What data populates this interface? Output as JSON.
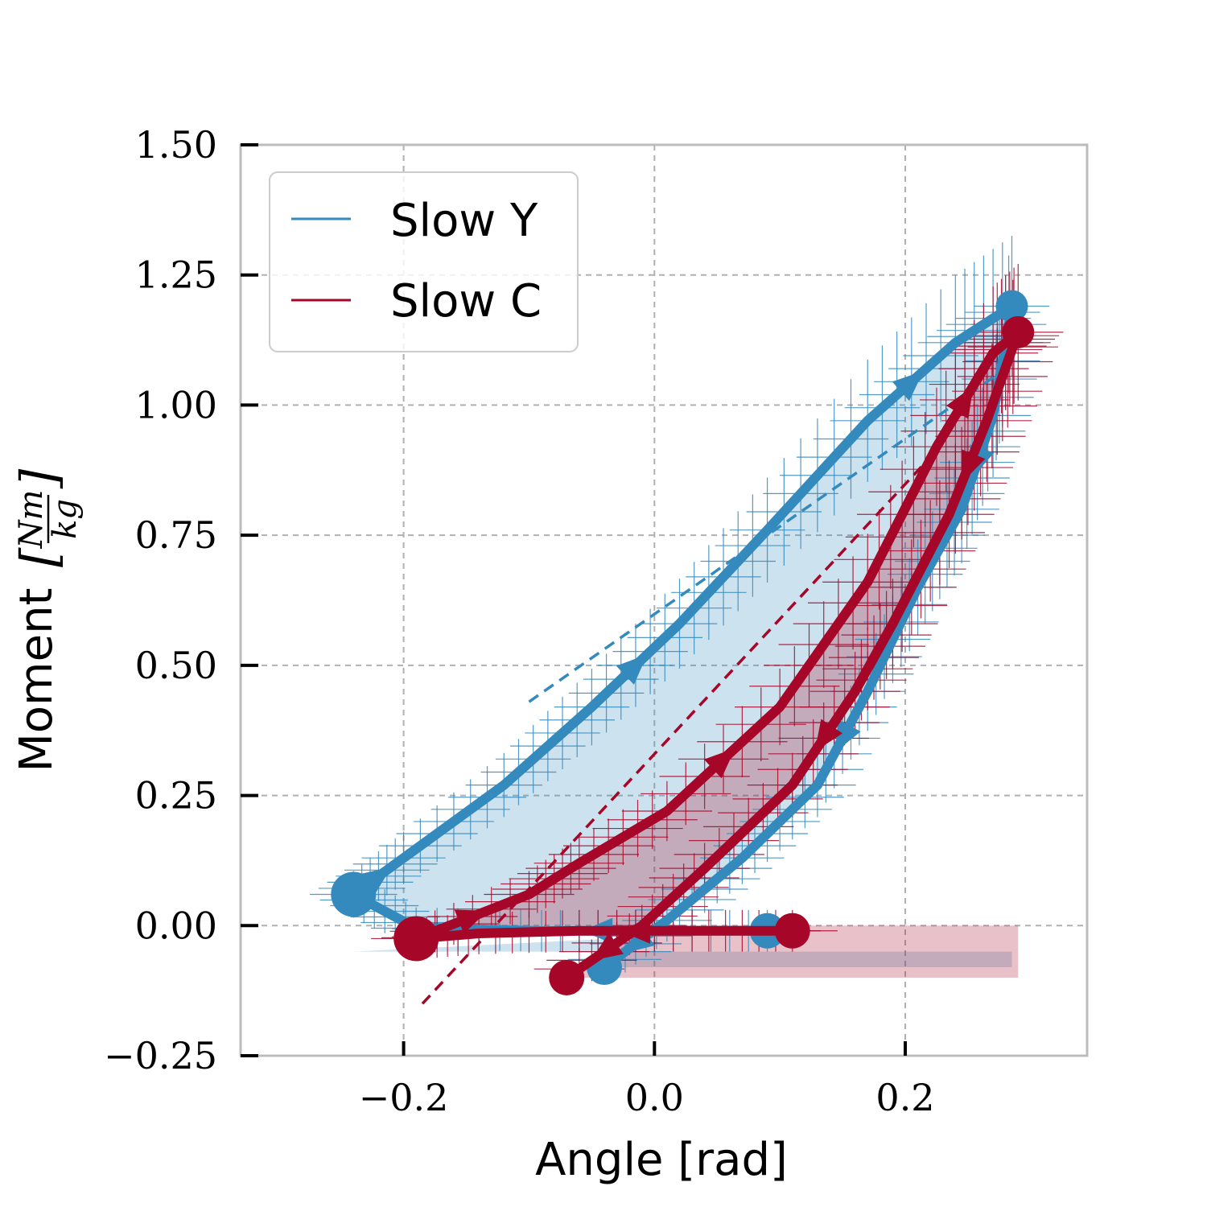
{
  "chart_data": {
    "type": "line",
    "xlabel": "Angle [rad]",
    "ylabel": "Moment",
    "ylabel_unit": {
      "numerator": "Nm",
      "denominator": "kg"
    },
    "xlim": [
      -0.33,
      0.345
    ],
    "ylim": [
      -0.25,
      1.5
    ],
    "xticks": [
      -0.2,
      0.0,
      0.2
    ],
    "xtick_labels": [
      "−0.2",
      "0.0",
      "0.2"
    ],
    "yticks": [
      -0.25,
      0.0,
      0.25,
      0.5,
      0.75,
      1.0,
      1.25,
      1.5
    ],
    "ytick_labels": [
      "−0.25",
      "0.00",
      "0.25",
      "0.50",
      "0.75",
      "1.00",
      "1.25",
      "1.50"
    ],
    "grid": true,
    "legend": {
      "position": "top-left"
    },
    "colors": {
      "Slow Y": "#348ABD",
      "Slow C": "#A60628",
      "grid": "#b0b0b0",
      "frame": "#bcbcbc"
    },
    "series": [
      {
        "name": "Slow Y",
        "color": "#348ABD",
        "loop": [
          [
            0.09,
            -0.01
          ],
          [
            0.0,
            -0.01
          ],
          [
            -0.09,
            -0.01
          ],
          [
            -0.19,
            -0.005
          ],
          [
            -0.24,
            0.06
          ],
          [
            -0.2,
            0.13
          ],
          [
            -0.12,
            0.27
          ],
          [
            -0.05,
            0.42
          ],
          [
            0.02,
            0.58
          ],
          [
            0.09,
            0.76
          ],
          [
            0.17,
            0.97
          ],
          [
            0.24,
            1.12
          ],
          [
            0.285,
            1.19
          ],
          [
            0.27,
            0.98
          ],
          [
            0.245,
            0.8
          ],
          [
            0.21,
            0.65
          ],
          [
            0.17,
            0.45
          ],
          [
            0.13,
            0.27
          ],
          [
            0.07,
            0.13
          ],
          [
            0.01,
            0.01
          ],
          [
            -0.04,
            -0.08
          ]
        ],
        "fit_line": [
          [
            -0.1,
            0.43
          ],
          [
            0.28,
            1.07
          ]
        ],
        "fill_baseline": -0.05
      },
      {
        "name": "Slow C",
        "color": "#A60628",
        "loop": [
          [
            0.11,
            -0.01
          ],
          [
            0.03,
            -0.01
          ],
          [
            -0.06,
            -0.01
          ],
          [
            -0.14,
            -0.015
          ],
          [
            -0.19,
            -0.025
          ],
          [
            -0.1,
            0.06
          ],
          [
            -0.06,
            0.12
          ],
          [
            0.01,
            0.22
          ],
          [
            0.1,
            0.42
          ],
          [
            0.17,
            0.66
          ],
          [
            0.225,
            0.92
          ],
          [
            0.27,
            1.1
          ],
          [
            0.29,
            1.14
          ],
          [
            0.265,
            0.97
          ],
          [
            0.235,
            0.79
          ],
          [
            0.19,
            0.58
          ],
          [
            0.16,
            0.45
          ],
          [
            0.11,
            0.27
          ],
          [
            0.04,
            0.11
          ],
          [
            -0.01,
            0.0
          ],
          [
            -0.07,
            -0.1
          ]
        ],
        "fit_line": [
          [
            -0.185,
            -0.15
          ],
          [
            0.22,
            0.9
          ]
        ],
        "fill_baseline": 0.0
      }
    ]
  }
}
